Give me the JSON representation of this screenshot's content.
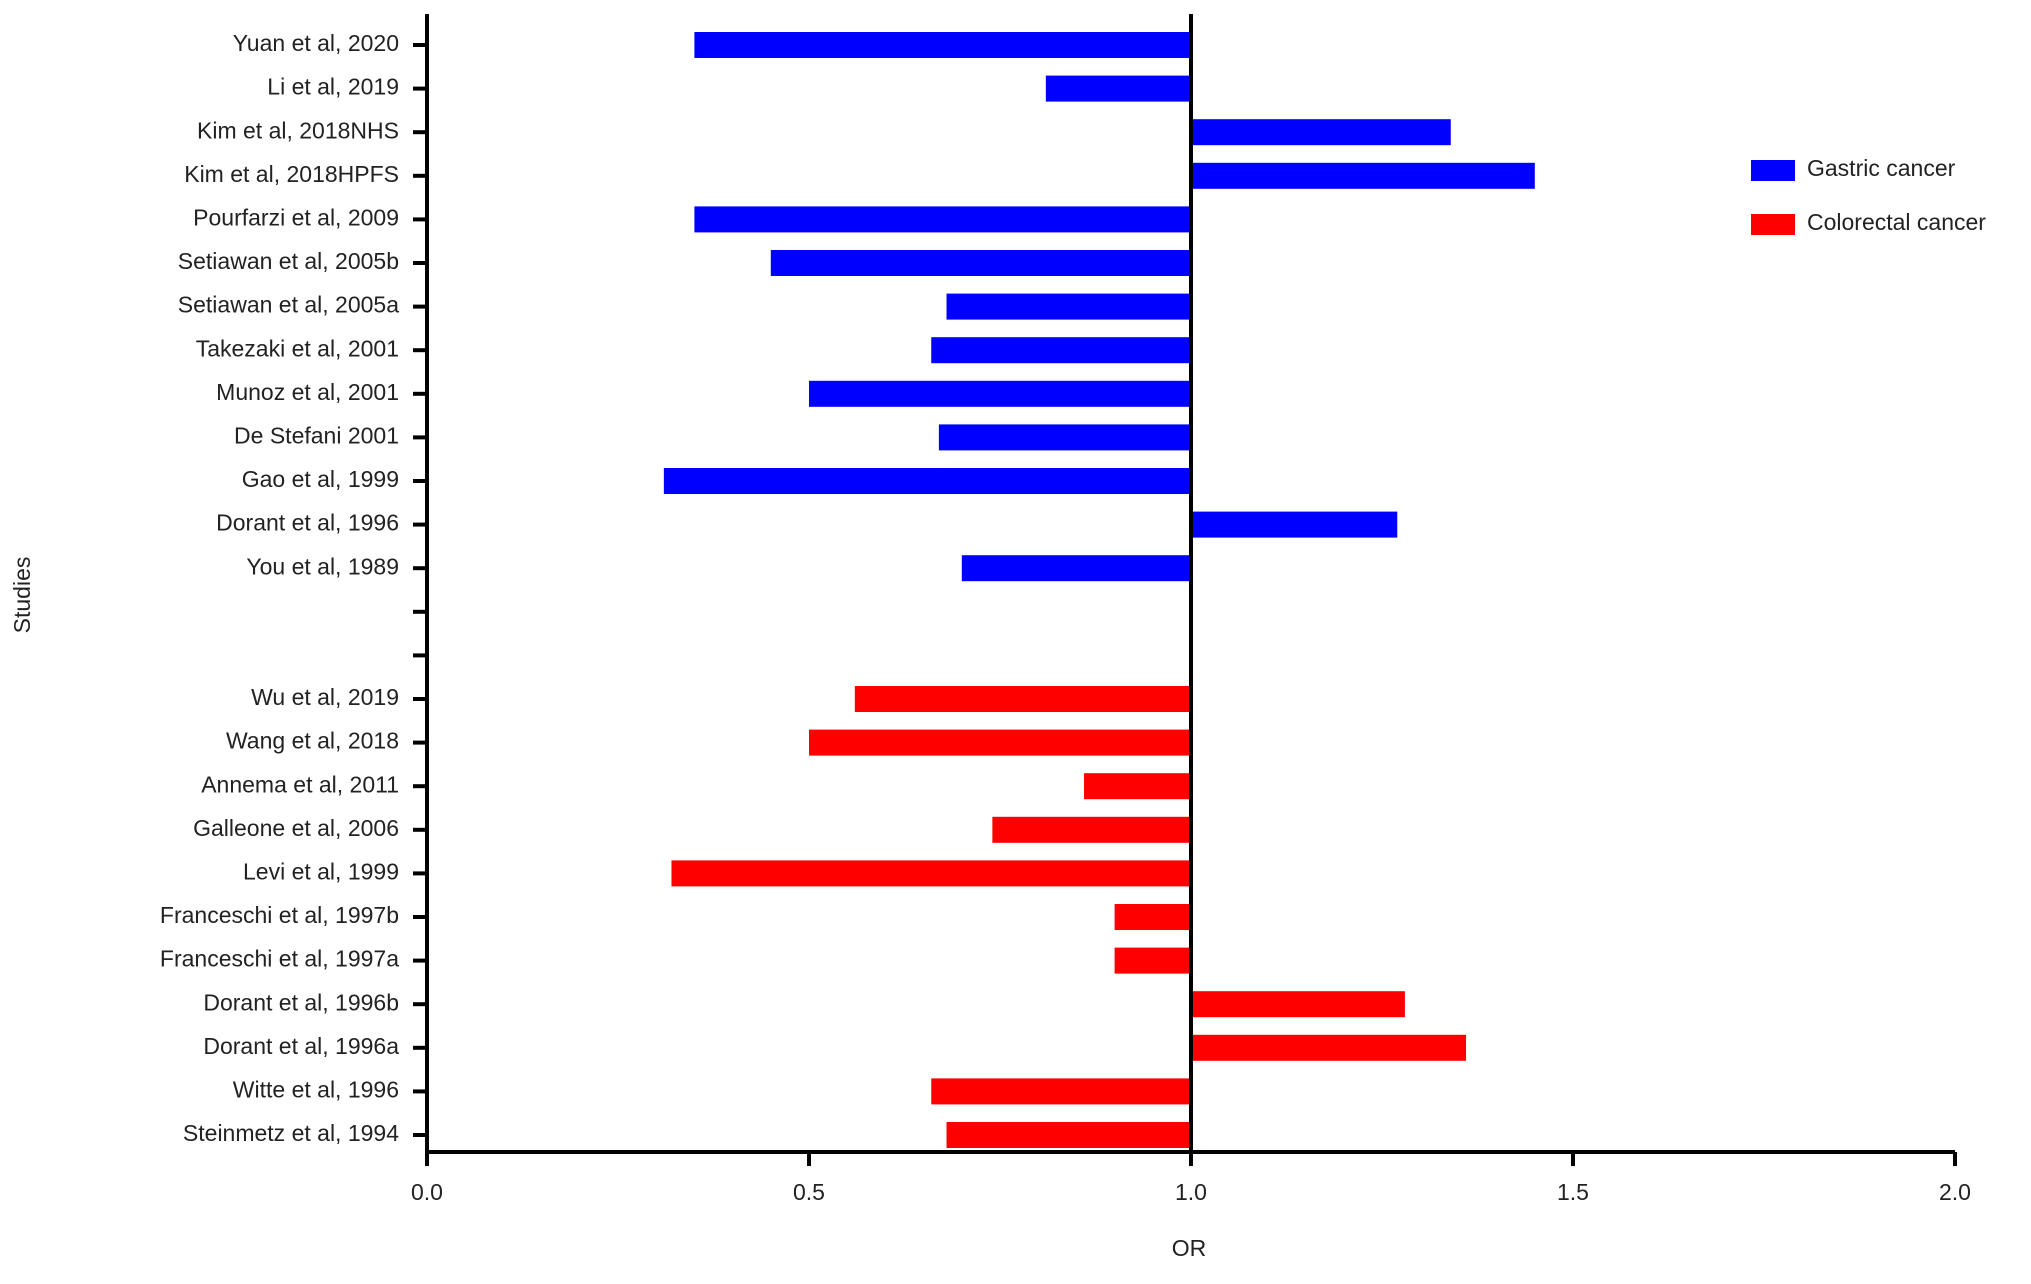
{
  "chart_data": {
    "type": "hbar",
    "x_label": "OR",
    "y_label": "Studies",
    "categories": [
      "Yuan et al, 2020",
      "Li et al, 2019",
      "Kim et al, 2018NHS",
      "Kim et al, 2018HPFS",
      "Pourfarzi et al, 2009",
      "Setiawan et al, 2005b",
      "Setiawan et al, 2005a",
      "Takezaki et al, 2001",
      "Munoz et al, 2001",
      "De Stefani 2001",
      "Gao et al, 1999",
      "Dorant et al, 1996",
      "You et al, 1989",
      null,
      null,
      "Wu et al, 2019",
      "Wang et al, 2018",
      "Annema et al, 2011",
      "Galleone et al, 2006",
      "Levi et al, 1999",
      "Franceschi et al, 1997b",
      "Franceschi et al, 1997a",
      "Dorant et al, 1996b",
      "Dorant et al, 1996a",
      "Witte et al, 1996",
      "Steinmetz et al, 1994"
    ],
    "series": [
      {
        "name": "Gastric cancer",
        "color": "#0000ff",
        "values": [
          0.35,
          0.81,
          1.34,
          1.45,
          0.35,
          0.45,
          0.68,
          0.66,
          0.5,
          0.67,
          0.31,
          1.27,
          0.7,
          null,
          null,
          null,
          null,
          null,
          null,
          null,
          null,
          null,
          null,
          null,
          null,
          null
        ]
      },
      {
        "name": "Colorectal cancer",
        "color": "#ff0000",
        "values": [
          null,
          null,
          null,
          null,
          null,
          null,
          null,
          null,
          null,
          null,
          null,
          null,
          null,
          null,
          null,
          0.56,
          0.5,
          0.86,
          0.74,
          0.32,
          0.9,
          0.9,
          1.28,
          1.36,
          0.66,
          0.68
        ]
      }
    ],
    "base": 1,
    "xlim": [
      0,
      2
    ],
    "xticks": [
      {
        "value": 0,
        "label": "0.0"
      },
      0.5,
      {
        "value": 1,
        "label": "1.0"
      },
      1.5,
      {
        "value": 2,
        "label": "2.0"
      }
    ],
    "legend": "top-right"
  }
}
